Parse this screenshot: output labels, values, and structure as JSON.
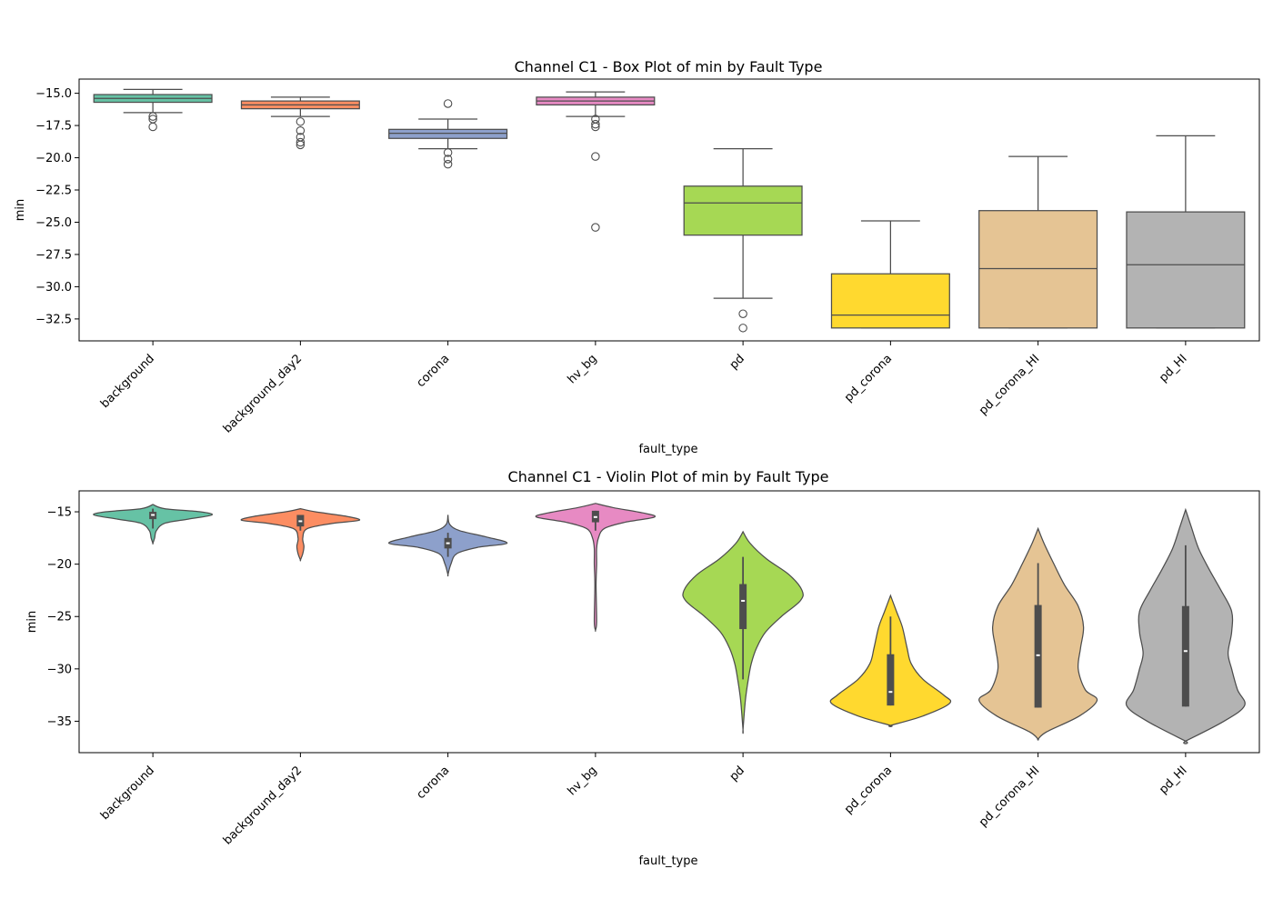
{
  "chart_data": [
    {
      "type": "box",
      "title": "Channel C1 - Box Plot of min by Fault Type",
      "xlabel": "fault_type",
      "ylabel": "min",
      "ylim": [
        -34.2,
        -13.9
      ],
      "yticks": [
        -15.0,
        -17.5,
        -20.0,
        -22.5,
        -25.0,
        -27.5,
        -30.0,
        -32.5
      ],
      "ytick_labels": [
        "−15.0",
        "−17.5",
        "−20.0",
        "−22.5",
        "−25.0",
        "−27.5",
        "−30.0",
        "−32.5"
      ],
      "categories": [
        "background",
        "background_day2",
        "corona",
        "hv_bg",
        "pd",
        "pd_corona",
        "pd_corona_HI",
        "pd_HI"
      ],
      "colors": [
        "#66c2a5",
        "#fc8d62",
        "#8da0cb",
        "#e78ac3",
        "#a6d854",
        "#ffd92f",
        "#e5c494",
        "#b3b3b3"
      ],
      "boxes": [
        {
          "whislo": -16.5,
          "q1": -15.7,
          "med": -15.4,
          "q3": -15.1,
          "whishi": -14.7,
          "fliers": [
            -16.8,
            -17.0,
            -17.6
          ]
        },
        {
          "whislo": -16.8,
          "q1": -16.2,
          "med": -15.9,
          "q3": -15.6,
          "whishi": -15.3,
          "fliers": [
            -17.2,
            -17.9,
            -18.4,
            -18.8,
            -19.0
          ]
        },
        {
          "whislo": -19.3,
          "q1": -18.5,
          "med": -18.1,
          "q3": -17.8,
          "whishi": -17.0,
          "fliers": [
            -15.8,
            -19.6,
            -20.1,
            -20.5
          ]
        },
        {
          "whislo": -16.8,
          "q1": -15.9,
          "med": -15.6,
          "q3": -15.3,
          "whishi": -14.9,
          "fliers": [
            -17.0,
            -17.4,
            -17.6,
            -19.9,
            -25.4
          ]
        },
        {
          "whislo": -30.9,
          "q1": -26.0,
          "med": -23.5,
          "q3": -22.2,
          "whishi": -19.3,
          "fliers": [
            -32.1,
            -33.2
          ]
        },
        {
          "whislo": -33.2,
          "q1": -33.2,
          "med": -32.2,
          "q3": -29.0,
          "whishi": -24.9,
          "fliers": []
        },
        {
          "whislo": -33.2,
          "q1": -33.2,
          "med": -28.6,
          "q3": -24.1,
          "whishi": -19.9,
          "fliers": []
        },
        {
          "whislo": -33.2,
          "q1": -33.2,
          "med": -28.3,
          "q3": -24.2,
          "whishi": -18.3,
          "fliers": []
        }
      ]
    },
    {
      "type": "violin",
      "title": "Channel C1 - Violin Plot of min by Fault Type",
      "xlabel": "fault_type",
      "ylabel": "min",
      "ylim": [
        -38.0,
        -13.0
      ],
      "yticks": [
        -15,
        -20,
        -25,
        -30,
        -35
      ],
      "ytick_labels": [
        "−15",
        "−20",
        "−25",
        "−30",
        "−35"
      ],
      "categories": [
        "background",
        "background_day2",
        "corona",
        "hv_bg",
        "pd",
        "pd_corona",
        "pd_corona_HI",
        "pd_HI"
      ],
      "colors": [
        "#66c2a5",
        "#fc8d62",
        "#8da0cb",
        "#e78ac3",
        "#a6d854",
        "#ffd92f",
        "#e5c494",
        "#b3b3b3"
      ],
      "violins": [
        {
          "profile": [
            [
              -14.3,
              0.0
            ],
            [
              -14.7,
              0.2
            ],
            [
              -15.0,
              0.8
            ],
            [
              -15.3,
              1.0
            ],
            [
              -15.7,
              0.6
            ],
            [
              -16.1,
              0.2
            ],
            [
              -16.8,
              0.06
            ],
            [
              -17.5,
              0.03
            ],
            [
              -18.0,
              0.0
            ]
          ],
          "q1": -15.7,
          "med": -15.3,
          "q3": -15.0,
          "whislo": -16.6,
          "whishi": -14.7
        },
        {
          "profile": [
            [
              -14.7,
              0.0
            ],
            [
              -15.0,
              0.25
            ],
            [
              -15.4,
              0.75
            ],
            [
              -15.8,
              1.0
            ],
            [
              -16.1,
              0.55
            ],
            [
              -16.6,
              0.12
            ],
            [
              -17.5,
              0.04
            ],
            [
              -18.3,
              0.06
            ],
            [
              -19.0,
              0.04
            ],
            [
              -19.6,
              0.0
            ]
          ],
          "q1": -16.4,
          "med": -15.9,
          "q3": -15.3,
          "whislo": -16.8,
          "whishi": -15.3
        },
        {
          "profile": [
            [
              -15.3,
              0.0
            ],
            [
              -16.2,
              0.03
            ],
            [
              -16.8,
              0.2
            ],
            [
              -17.4,
              0.65
            ],
            [
              -18.0,
              1.0
            ],
            [
              -18.4,
              0.5
            ],
            [
              -19.0,
              0.15
            ],
            [
              -20.0,
              0.05
            ],
            [
              -21.0,
              0.0
            ]
          ],
          "q1": -18.5,
          "med": -18.0,
          "q3": -17.5,
          "whislo": -19.3,
          "whishi": -17.0
        },
        {
          "profile": [
            [
              -14.2,
              0.0
            ],
            [
              -14.6,
              0.3
            ],
            [
              -15.1,
              0.8
            ],
            [
              -15.5,
              1.0
            ],
            [
              -16.0,
              0.5
            ],
            [
              -16.6,
              0.15
            ],
            [
              -17.5,
              0.05
            ],
            [
              -18.5,
              0.02
            ],
            [
              -20.0,
              0.02
            ],
            [
              -22.0,
              0.01
            ],
            [
              -25.5,
              0.02
            ],
            [
              -26.3,
              0.0
            ]
          ],
          "q1": -16.0,
          "med": -15.5,
          "q3": -14.9,
          "whislo": -16.8,
          "whishi": -14.9
        },
        {
          "profile": [
            [
              -16.9,
              0.0
            ],
            [
              -18.0,
              0.12
            ],
            [
              -19.5,
              0.4
            ],
            [
              -21.0,
              0.78
            ],
            [
              -22.5,
              1.0
            ],
            [
              -23.5,
              0.97
            ],
            [
              -25.0,
              0.65
            ],
            [
              -26.5,
              0.38
            ],
            [
              -28.0,
              0.23
            ],
            [
              -29.5,
              0.14
            ],
            [
              -31.0,
              0.09
            ],
            [
              -33.0,
              0.04
            ],
            [
              -35.8,
              0.0
            ]
          ],
          "q1": -26.2,
          "med": -23.5,
          "q3": -21.9,
          "whislo": -31.0,
          "whishi": -19.3
        },
        {
          "profile": [
            [
              -23.0,
              0.0
            ],
            [
              -24.5,
              0.1
            ],
            [
              -26.0,
              0.2
            ],
            [
              -28.0,
              0.28
            ],
            [
              -29.5,
              0.35
            ],
            [
              -31.0,
              0.55
            ],
            [
              -32.5,
              0.9
            ],
            [
              -33.3,
              1.0
            ],
            [
              -34.5,
              0.55
            ],
            [
              -35.4,
              0.0
            ]
          ],
          "q1": -33.5,
          "med": -32.2,
          "q3": -28.6,
          "whislo": -33.5,
          "whishi": -25.0
        },
        {
          "profile": [
            [
              -16.6,
              0.0
            ],
            [
              -18.0,
              0.1
            ],
            [
              -20.0,
              0.27
            ],
            [
              -22.0,
              0.45
            ],
            [
              -24.0,
              0.68
            ],
            [
              -26.0,
              0.77
            ],
            [
              -28.0,
              0.72
            ],
            [
              -30.0,
              0.68
            ],
            [
              -32.0,
              0.8
            ],
            [
              -33.0,
              1.0
            ],
            [
              -34.5,
              0.7
            ],
            [
              -36.0,
              0.15
            ],
            [
              -36.7,
              0.0
            ]
          ],
          "q1": -33.7,
          "med": -28.7,
          "q3": -23.9,
          "whislo": -33.7,
          "whishi": -19.9
        },
        {
          "profile": [
            [
              -14.8,
              0.0
            ],
            [
              -16.5,
              0.1
            ],
            [
              -18.5,
              0.22
            ],
            [
              -20.5,
              0.4
            ],
            [
              -22.5,
              0.6
            ],
            [
              -24.5,
              0.78
            ],
            [
              -26.5,
              0.78
            ],
            [
              -28.5,
              0.72
            ],
            [
              -30.0,
              0.78
            ],
            [
              -32.0,
              0.88
            ],
            [
              -33.5,
              1.0
            ],
            [
              -35.0,
              0.65
            ],
            [
              -36.9,
              0.0
            ]
          ],
          "q1": -33.6,
          "med": -28.3,
          "q3": -24.0,
          "whislo": -33.6,
          "whishi": -18.2
        }
      ]
    }
  ]
}
